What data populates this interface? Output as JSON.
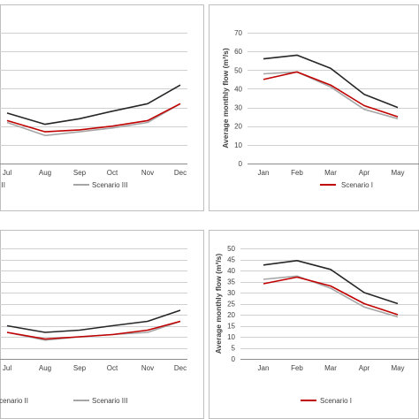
{
  "chart_data": [
    {
      "type": "line",
      "categories": [
        "Jul",
        "Aug",
        "Sep",
        "Oct",
        "Nov",
        "Dec"
      ],
      "ylim": [
        0,
        70
      ],
      "yticks": [],
      "ylabel": "",
      "grid": "horizontal",
      "legend": {
        "placement": "bottom",
        "entries": [
          {
            "label": "II",
            "color": "#c00000",
            "swatch": false
          },
          {
            "label": "Scenario III",
            "color": "#a6a6a6",
            "swatch": true
          }
        ]
      },
      "series": [
        {
          "name": "",
          "color": "#262626",
          "values": [
            27,
            21,
            24,
            28,
            32,
            42
          ]
        },
        {
          "name": "",
          "color": "#c00000",
          "values": [
            23,
            17,
            18,
            20,
            23,
            32
          ]
        },
        {
          "name": "",
          "color": "#a6a6a6",
          "values": [
            22,
            15,
            17,
            19,
            22,
            32
          ]
        }
      ]
    },
    {
      "type": "line",
      "categories": [
        "Jan",
        "Feb",
        "Mar",
        "Apr",
        "May"
      ],
      "ylim": [
        0,
        70
      ],
      "yticks": [
        "0",
        "10",
        "20",
        "30",
        "40",
        "50",
        "60",
        "70"
      ],
      "ylabel": "Average monthly flow (m³/s)",
      "grid": "horizontal",
      "legend": {
        "placement": "bottom",
        "entries": [
          {
            "label": "Scenario I",
            "color": "#c00000",
            "swatch": true
          }
        ]
      },
      "series": [
        {
          "name": "",
          "color": "#262626",
          "values": [
            56,
            58,
            51,
            37,
            30
          ]
        },
        {
          "name": "",
          "color": "#c00000",
          "values": [
            45,
            49,
            42,
            31,
            25
          ]
        },
        {
          "name": "",
          "color": "#a6a6a6",
          "values": [
            48,
            49,
            41,
            29,
            24
          ]
        }
      ]
    },
    {
      "type": "line",
      "categories": [
        "Jul",
        "Aug",
        "Sep",
        "Oct",
        "Nov",
        "Dec"
      ],
      "ylim": [
        0,
        50
      ],
      "yticks": [],
      "ylabel": "",
      "grid": "horizontal",
      "legend": {
        "placement": "bottom",
        "entries": [
          {
            "label": "Scenario II",
            "color": "#c00000",
            "swatch": false
          },
          {
            "label": "Scenario III",
            "color": "#a6a6a6",
            "swatch": true
          }
        ]
      },
      "series": [
        {
          "name": "",
          "color": "#262626",
          "values": [
            15,
            12,
            13,
            15,
            17,
            22
          ]
        },
        {
          "name": "",
          "color": "#c00000",
          "values": [
            12,
            9,
            10,
            11,
            13,
            17
          ]
        },
        {
          "name": "",
          "color": "#a6a6a6",
          "values": [
            12,
            8.5,
            10,
            11,
            12,
            17
          ]
        }
      ]
    },
    {
      "type": "line",
      "categories": [
        "Jan",
        "Feb",
        "Mar",
        "Apr",
        "May"
      ],
      "ylim": [
        0,
        50
      ],
      "yticks": [
        "0",
        "5",
        "10",
        "15",
        "20",
        "25",
        "30",
        "35",
        "40",
        "45",
        "50"
      ],
      "ylabel": "Average monthly flow (m³/s)",
      "grid": "horizontal",
      "legend": {
        "placement": "bottom",
        "entries": [
          {
            "label": "Scenario I",
            "color": "#c00000",
            "swatch": true
          }
        ]
      },
      "series": [
        {
          "name": "",
          "color": "#262626",
          "values": [
            42.5,
            44.5,
            40.5,
            30,
            25
          ]
        },
        {
          "name": "",
          "color": "#c00000",
          "values": [
            34,
            37,
            33,
            25,
            20
          ]
        },
        {
          "name": "",
          "color": "#a6a6a6",
          "values": [
            36,
            37.5,
            32,
            23.5,
            19
          ]
        }
      ]
    }
  ]
}
